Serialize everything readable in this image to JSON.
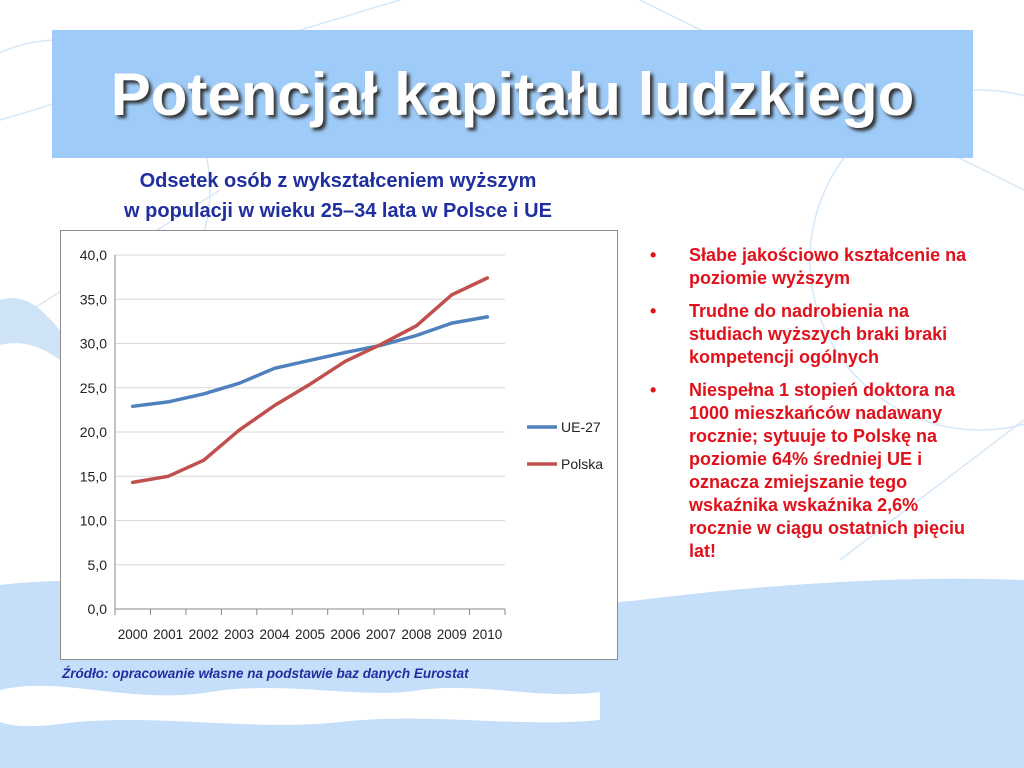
{
  "title": "Potencjał kapitału ludzkiego",
  "chart_heading": {
    "line1": "Odsetek osób z wykształceniem wyższym",
    "line2": "w populacji w wieku 25–34 lata w Polsce i UE"
  },
  "source": "Źródło: opracowanie własne na podstawie baz danych Eurostat",
  "bullets": [
    "Słabe jakościowo kształcenie na poziomie wyższym",
    "Trudne do nadrobienia na studiach wyższych braki braki kompetencji ogólnych",
    "Niespełna 1 stopień doktora na 1000 mieszkańców nadawany rocznie; sytuuje to Polskę na poziomie 64% średniej UE i oznacza zmiejszanie  tego wskaźnika wskaźnika 2,6% rocznie w ciągu ostatnich pięciu lat!"
  ],
  "bullet_symbol": "•",
  "colors": {
    "title_band": "#9ecbf7",
    "heading_text": "#1f2fa0",
    "bullet_text": "#e0111b",
    "series_ue": "#4f81bd",
    "series_pl": "#c0504d"
  },
  "chart_data": {
    "type": "line",
    "x": [
      "2000",
      "2001",
      "2002",
      "2003",
      "2004",
      "2005",
      "2006",
      "2007",
      "2008",
      "2009",
      "2010"
    ],
    "ylim": [
      0,
      40
    ],
    "yticks": [
      "0,0",
      "5,0",
      "10,0",
      "15,0",
      "20,0",
      "25,0",
      "30,0",
      "35,0",
      "40,0"
    ],
    "grid": true,
    "legend_position": "right",
    "series": [
      {
        "name": "UE-27",
        "color": "#4f81bd",
        "values": [
          22.9,
          23.4,
          24.3,
          25.5,
          27.2,
          28.1,
          29.0,
          29.8,
          30.9,
          32.3,
          33.0
        ]
      },
      {
        "name": "Polska",
        "color": "#c0504d",
        "values": [
          14.3,
          15.0,
          16.8,
          20.2,
          23.0,
          25.4,
          28.0,
          29.9,
          32.0,
          35.5,
          37.4
        ]
      }
    ]
  }
}
